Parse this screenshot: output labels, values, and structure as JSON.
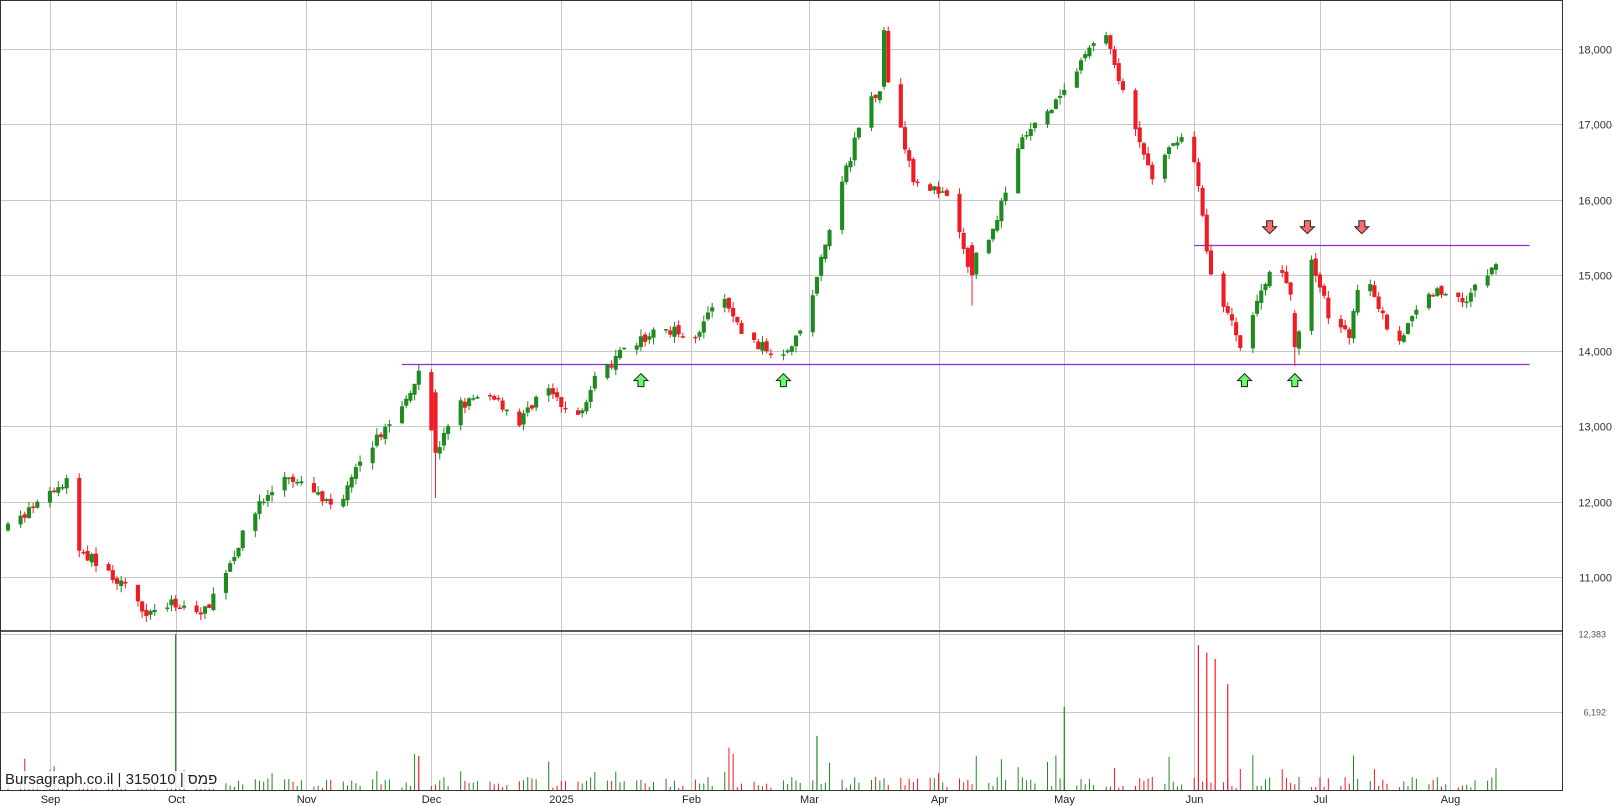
{
  "watermark": "Bursagraph.co.il | 315010 | פמס",
  "colors": {
    "up": "#1f8a1f",
    "down": "#ee1c25",
    "level": "#8a2be2",
    "grid": "#c8c8c8",
    "arrowUp": "#66ff66",
    "arrowDown": "#ff6b6b"
  },
  "chart_data": {
    "type": "candlestick",
    "ylim": [
      10300,
      18650
    ],
    "yticks": [
      11000,
      12000,
      13000,
      14000,
      15000,
      16000,
      17000,
      18000
    ],
    "ytick_labels": [
      "11,000",
      "12,000",
      "13,000",
      "14,000",
      "15,000",
      "16,000",
      "17,000",
      "18,000"
    ],
    "volume_ylim": [
      0,
      12383
    ],
    "volume_ticks": [
      "12,383",
      "6,192"
    ],
    "volume_tick_values": [
      12383,
      6192
    ],
    "x_start": "2024-08-22",
    "x_end": "2025-08-12",
    "month_labels": [
      {
        "date": "2024-09-01",
        "label": "Sep"
      },
      {
        "date": "2024-10-01",
        "label": "Oct"
      },
      {
        "date": "2024-11-01",
        "label": "Nov"
      },
      {
        "date": "2024-12-01",
        "label": "Dec"
      },
      {
        "date": "2025-01-01",
        "label": "2025"
      },
      {
        "date": "2025-02-01",
        "label": "Feb"
      },
      {
        "date": "2025-03-01",
        "label": "Mar"
      },
      {
        "date": "2025-04-01",
        "label": "Apr"
      },
      {
        "date": "2025-05-01",
        "label": "May"
      },
      {
        "date": "2025-06-01",
        "label": "Jun"
      },
      {
        "date": "2025-07-01",
        "label": "Jul"
      },
      {
        "date": "2025-08-01",
        "label": "Aug"
      }
    ],
    "price_path": [
      [
        "2024-08-22",
        11650
      ],
      [
        "2024-09-06",
        12300
      ],
      [
        "2024-09-08",
        11350
      ],
      [
        "2024-09-12",
        11200
      ],
      [
        "2024-09-19",
        10850
      ],
      [
        "2024-09-24",
        10550
      ],
      [
        "2024-10-01",
        10650
      ],
      [
        "2024-10-08",
        10550
      ],
      [
        "2024-10-14",
        11200
      ],
      [
        "2024-10-20",
        11900
      ],
      [
        "2024-10-27",
        12300
      ],
      [
        "2024-11-03",
        12150
      ],
      [
        "2024-11-08",
        11900
      ],
      [
        "2024-11-16",
        12700
      ],
      [
        "2024-11-24",
        13250
      ],
      [
        "2024-11-28",
        13750
      ],
      [
        "2024-12-02",
        12650
      ],
      [
        "2024-12-08",
        13300
      ],
      [
        "2024-12-16",
        13400
      ],
      [
        "2024-12-22",
        13050
      ],
      [
        "2024-12-28",
        13550
      ],
      [
        "2025-01-04",
        13050
      ],
      [
        "2025-01-09",
        13600
      ],
      [
        "2025-01-16",
        14000
      ],
      [
        "2025-01-25",
        14300
      ],
      [
        "2025-02-02",
        14200
      ],
      [
        "2025-02-08",
        14750
      ],
      [
        "2025-02-14",
        14150
      ],
      [
        "2025-02-22",
        13950
      ],
      [
        "2025-02-28",
        14300
      ],
      [
        "2025-03-04",
        15200
      ],
      [
        "2025-03-10",
        16400
      ],
      [
        "2025-03-15",
        17300
      ],
      [
        "2025-03-20",
        17600
      ],
      [
        "2025-03-26",
        16300
      ],
      [
        "2025-04-04",
        16000
      ],
      [
        "2025-04-08",
        15100
      ],
      [
        "2025-04-14",
        15600
      ],
      [
        "2025-04-21",
        16800
      ],
      [
        "2025-04-28",
        17200
      ],
      [
        "2025-05-05",
        17800
      ],
      [
        "2025-05-10",
        18350
      ],
      [
        "2025-05-16",
        17200
      ],
      [
        "2025-05-22",
        16300
      ],
      [
        "2025-05-29",
        16900
      ],
      [
        "2025-06-01",
        16500
      ],
      [
        "2025-06-05",
        15000
      ],
      [
        "2025-06-12",
        14100
      ],
      [
        "2025-06-18",
        14900
      ],
      [
        "2025-06-21",
        15300
      ],
      [
        "2025-06-26",
        14300
      ],
      [
        "2025-06-29",
        15200
      ],
      [
        "2025-07-03",
        14500
      ],
      [
        "2025-07-08",
        14150
      ],
      [
        "2025-07-11",
        15200
      ],
      [
        "2025-07-15",
        14600
      ],
      [
        "2025-07-19",
        14050
      ],
      [
        "2025-07-27",
        14800
      ],
      [
        "2025-08-05",
        14700
      ],
      [
        "2025-08-12",
        15150
      ]
    ],
    "spikes": [
      {
        "date": "2024-09-06",
        "kind": "down",
        "open": 12300,
        "close": 11350
      },
      {
        "date": "2024-12-02",
        "kind": "down",
        "open": 13450,
        "close": 12650,
        "low": 12050
      },
      {
        "date": "2025-03-22",
        "kind": "down",
        "open": 16900,
        "close": 16250,
        "low": 15400
      },
      {
        "date": "2025-04-09",
        "kind": "down",
        "open": 15400,
        "close": 15000,
        "low": 14600
      },
      {
        "date": "2025-03-19",
        "kind": "up",
        "open": 17500,
        "close": 18250
      },
      {
        "date": "2025-06-13",
        "kind": "up",
        "open": 13800,
        "close": 14450,
        "low": 13780
      },
      {
        "date": "2025-06-25",
        "kind": "down",
        "open": 14500,
        "close": 14050,
        "low": 13800
      }
    ],
    "volume_spikes": [
      {
        "date": "2024-10-01",
        "value": 12383,
        "kind": "up"
      },
      {
        "date": "2025-06-02",
        "value": 11500,
        "kind": "down"
      },
      {
        "date": "2025-06-04",
        "value": 10900,
        "kind": "down"
      },
      {
        "date": "2025-06-06",
        "value": 10400,
        "kind": "down"
      },
      {
        "date": "2025-06-09",
        "value": 8400,
        "kind": "down"
      },
      {
        "date": "2025-05-01",
        "value": 6600,
        "kind": "up"
      },
      {
        "date": "2025-03-03",
        "value": 4300,
        "kind": "up"
      },
      {
        "date": "2024-11-28",
        "value": 2700,
        "kind": "down"
      }
    ],
    "levels": [
      {
        "y": 13830,
        "x0": "2024-11-24",
        "x1": "2025-08-20"
      },
      {
        "y": 15400,
        "x0": "2025-06-01",
        "x1": "2025-08-20"
      }
    ],
    "arrows": [
      {
        "date": "2025-01-20",
        "kind": "up",
        "y": 13830
      },
      {
        "date": "2025-02-23",
        "kind": "up",
        "y": 13830
      },
      {
        "date": "2025-06-13",
        "kind": "up",
        "y": 13830
      },
      {
        "date": "2025-06-25",
        "kind": "up",
        "y": 13830
      },
      {
        "date": "2025-06-19",
        "kind": "down",
        "y": 15420
      },
      {
        "date": "2025-06-28",
        "kind": "down",
        "y": 15420
      },
      {
        "date": "2025-07-11",
        "kind": "down",
        "y": 15420
      }
    ]
  }
}
